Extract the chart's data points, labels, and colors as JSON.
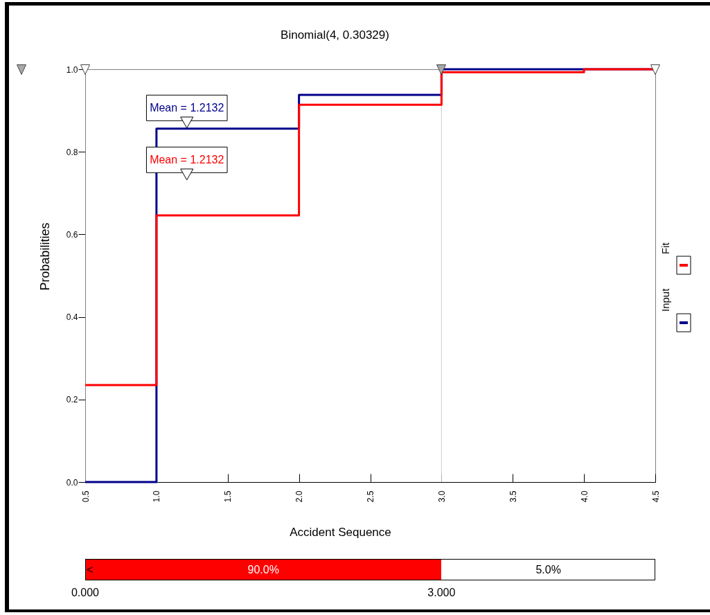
{
  "chart_data": {
    "type": "step",
    "title": "Binomial(4, 0.30329)",
    "xlabel": "Accident Sequence",
    "ylabel": "Probabilities",
    "series": [
      {
        "name": "Input",
        "color": "#00008b",
        "x": [
          0.5,
          1,
          2,
          3,
          4.5
        ],
        "values": [
          0,
          0.856,
          0.938,
          1,
          1
        ]
      },
      {
        "name": "Fit",
        "color": "#ff0000",
        "x": [
          0.5,
          1,
          2,
          3,
          4,
          4.5
        ],
        "values": [
          0.235,
          0.646,
          0.914,
          0.993,
          1,
          1
        ]
      }
    ],
    "xlim": [
      0.5,
      4.5
    ],
    "xticks": [
      0.5,
      {
        "value": 1,
        "label": "1.0"
      },
      1.5,
      {
        "value": 2,
        "label": "2.0"
      },
      2.5,
      {
        "value": 3,
        "label": "3.0"
      },
      3.5,
      {
        "value": 4,
        "label": "4.0"
      },
      4.5
    ],
    "ylim": [
      0,
      1
    ],
    "yticks": [
      {
        "value": 0,
        "label": "0.0"
      },
      0.2,
      0.4,
      0.6,
      0.8,
      {
        "value": 1,
        "label": "1.0"
      }
    ],
    "ref_lines": [
      {
        "axis": "x",
        "value": 3,
        "color": "#cccccc"
      }
    ],
    "annotations": [
      {
        "text": "Mean = 1.2132",
        "x": 1.2132,
        "y": 0.856
      },
      "Mean = 1.2132",
      "<",
      "90.0%",
      "5.0%",
      "0.000",
      "3.000"
    ],
    "legend": "right"
  }
}
